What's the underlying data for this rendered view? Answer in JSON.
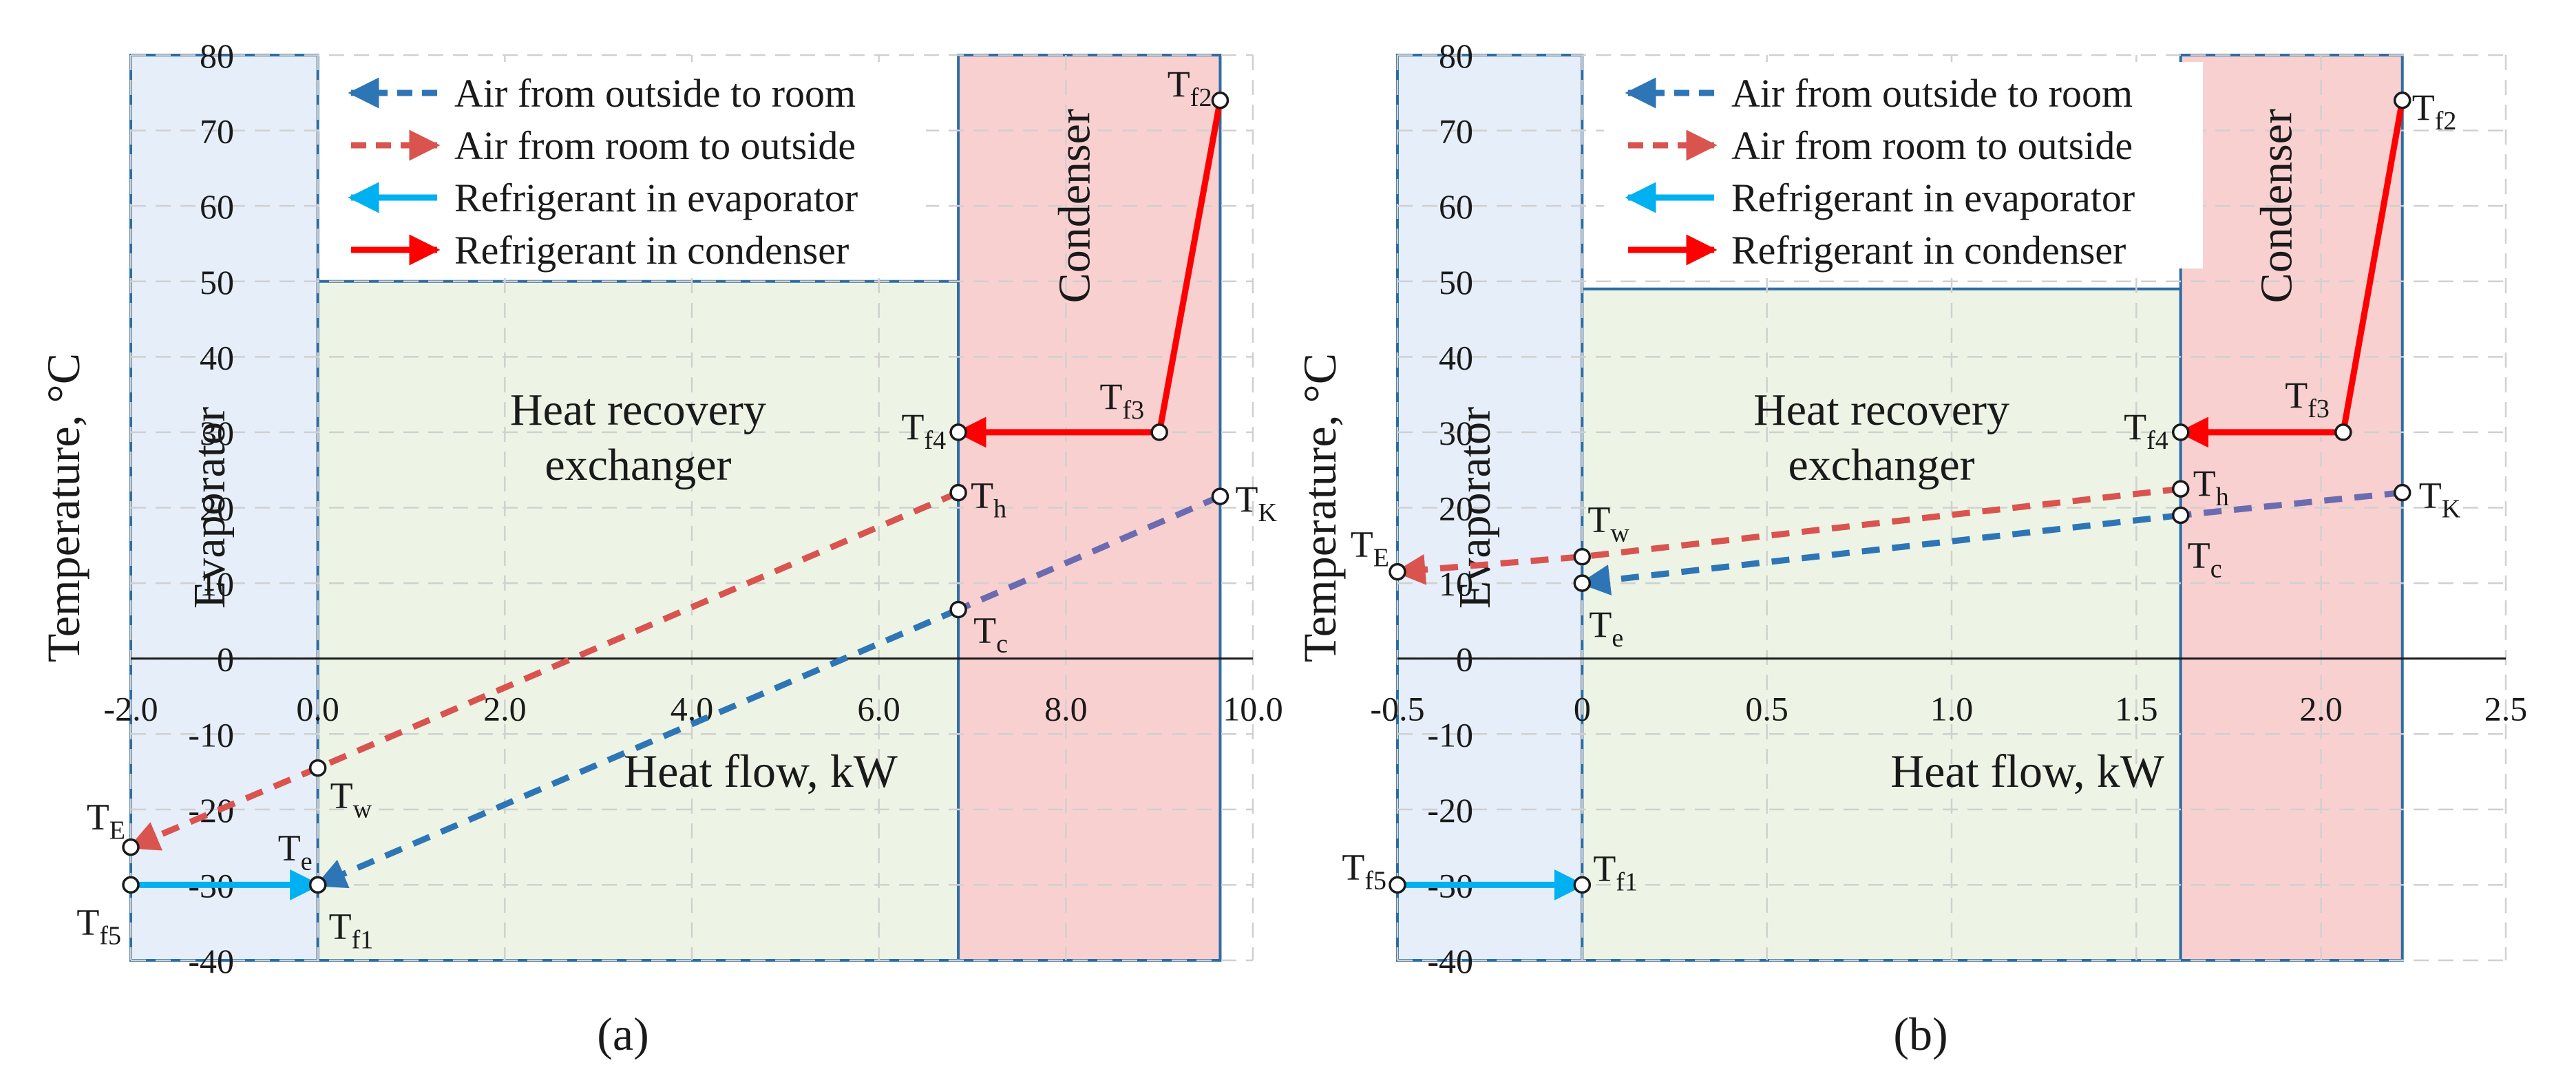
{
  "figure": {
    "panel_labels": [
      "(a)",
      "(b)"
    ]
  },
  "legend": [
    {
      "label": "Air from outside to room",
      "color": "#2e75b6",
      "style": "dashed"
    },
    {
      "label": "Air from room  to outside",
      "color": "#d9534f",
      "style": "dashed"
    },
    {
      "label": "Refrigerant in evaporator",
      "color": "#00b0f0",
      "style": "solid"
    },
    {
      "label": "Refrigerant in condenser",
      "color": "#ff0000",
      "style": "solid"
    }
  ],
  "colors": {
    "evaporator_fill": "#e6eef9",
    "recovery_fill": "#edf4e6",
    "condenser_fill": "#f9d0d0",
    "zone_border": "#2d6da3",
    "air_out_to_room": "#2e75b6",
    "air_room_to_out": "#d9534f",
    "condenser_segment_air": "#6b6bb0",
    "refrigerant_evaporator": "#00b0f0",
    "refrigerant_condenser": "#ff0000",
    "grid": "#d0d0d0"
  },
  "chart_data": [
    {
      "type": "line",
      "panel": "(a)",
      "xlabel": "Heat flow, kW",
      "ylabel": "Temperature, °C",
      "xlim": [
        -2.0,
        10.0
      ],
      "ylim": [
        -40,
        80
      ],
      "xticks": [
        -2.0,
        0.0,
        2.0,
        4.0,
        6.0,
        8.0,
        10.0
      ],
      "xtick_labels": [
        "-2.0",
        "0.0",
        "2.0",
        "4.0",
        "6.0",
        "8.0",
        "10.0"
      ],
      "yticks": [
        -40,
        -30,
        -20,
        -10,
        0,
        10,
        20,
        30,
        40,
        50,
        60,
        70,
        80
      ],
      "ytick_labels": [
        "-40",
        "-30",
        "-20",
        "-10",
        "0",
        "10",
        "20",
        "30",
        "40",
        "50",
        "60",
        "70",
        "80"
      ],
      "zones": [
        {
          "label": "Evaporator",
          "x": [
            -2.0,
            0.0
          ],
          "y": [
            -40,
            80
          ]
        },
        {
          "label": "Heat recovery\nexchanger",
          "x": [
            0.0,
            6.85
          ],
          "y": [
            -40,
            50
          ]
        },
        {
          "label": "Condenser",
          "x": [
            6.85,
            9.65
          ],
          "y": [
            -40,
            80
          ]
        }
      ],
      "series": [
        {
          "name": "Air from outside to room",
          "points": [
            [
              0.0,
              -30
            ],
            [
              6.85,
              6.5
            ],
            [
              9.65,
              21.5
            ]
          ]
        },
        {
          "name": "Air from room  to outside",
          "points": [
            [
              6.85,
              22
            ],
            [
              0.0,
              -14.5
            ],
            [
              -2.0,
              -25
            ]
          ]
        },
        {
          "name": "Refrigerant in evaporator",
          "points": [
            [
              -2.0,
              -30
            ],
            [
              0.0,
              -30
            ]
          ]
        },
        {
          "name": "Refrigerant in condenser",
          "points": [
            [
              9.65,
              74
            ],
            [
              9.0,
              30
            ],
            [
              6.85,
              30
            ]
          ]
        }
      ],
      "points": [
        {
          "label": "Tf2",
          "x": 9.65,
          "y": 74
        },
        {
          "label": "Tf3",
          "x": 9.0,
          "y": 30
        },
        {
          "label": "Tf4",
          "x": 6.85,
          "y": 30
        },
        {
          "label": "Th",
          "x": 6.85,
          "y": 22
        },
        {
          "label": "TK",
          "x": 9.65,
          "y": 21.5
        },
        {
          "label": "Tc",
          "x": 6.85,
          "y": 6.5
        },
        {
          "label": "Tw",
          "x": 0.0,
          "y": -14.5
        },
        {
          "label": "TE",
          "x": -2.0,
          "y": -25
        },
        {
          "label": "Te",
          "x": 0.0,
          "y": -30
        },
        {
          "label": "Tf1",
          "x": 0.0,
          "y": -30
        },
        {
          "label": "Tf5",
          "x": -2.0,
          "y": -30
        }
      ]
    },
    {
      "type": "line",
      "panel": "(b)",
      "xlabel": "Heat flow, kW",
      "ylabel": "Temperature, °C",
      "xlim": [
        -0.5,
        2.5
      ],
      "ylim": [
        -40,
        80
      ],
      "xticks": [
        -0.5,
        0.0,
        0.5,
        1.0,
        1.5,
        2.0,
        2.5
      ],
      "xtick_labels": [
        "-0.5",
        "0",
        "0.5",
        "1.0",
        "1.5",
        "2.0",
        "2.5"
      ],
      "yticks": [
        -40,
        -30,
        -20,
        -10,
        0,
        10,
        20,
        30,
        40,
        50,
        60,
        70,
        80
      ],
      "ytick_labels": [
        "-40",
        "-30",
        "-20",
        "-10",
        "0",
        "10",
        "20",
        "30",
        "40",
        "50",
        "60",
        "70",
        "80"
      ],
      "zones": [
        {
          "label": "Evaporator",
          "x": [
            -0.5,
            0.0
          ],
          "y": [
            -40,
            80
          ]
        },
        {
          "label": "Heat recovery\nexchanger",
          "x": [
            0.0,
            1.62
          ],
          "y": [
            -40,
            49
          ]
        },
        {
          "label": "Condenser",
          "x": [
            1.62,
            2.22
          ],
          "y": [
            -40,
            80
          ]
        }
      ],
      "series": [
        {
          "name": "Air from outside to room",
          "points": [
            [
              0.0,
              10
            ],
            [
              1.62,
              19
            ],
            [
              2.22,
              22
            ]
          ]
        },
        {
          "name": "Air from room  to outside",
          "points": [
            [
              1.62,
              22.5
            ],
            [
              0.0,
              13.5
            ],
            [
              -0.5,
              11.5
            ]
          ]
        },
        {
          "name": "Refrigerant in evaporator",
          "points": [
            [
              -0.5,
              -30
            ],
            [
              0.0,
              -30
            ]
          ]
        },
        {
          "name": "Refrigerant in condenser",
          "points": [
            [
              2.22,
              74
            ],
            [
              2.06,
              30
            ],
            [
              1.62,
              30
            ]
          ]
        }
      ],
      "points": [
        {
          "label": "Tf2",
          "x": 2.22,
          "y": 74
        },
        {
          "label": "Tf3",
          "x": 2.06,
          "y": 30
        },
        {
          "label": "Tf4",
          "x": 1.62,
          "y": 30
        },
        {
          "label": "Th",
          "x": 1.62,
          "y": 22.5
        },
        {
          "label": "TK",
          "x": 2.22,
          "y": 22
        },
        {
          "label": "Tc",
          "x": 1.62,
          "y": 19
        },
        {
          "label": "Tw",
          "x": 0.0,
          "y": 13.5
        },
        {
          "label": "TE",
          "x": -0.5,
          "y": 11.5
        },
        {
          "label": "Te",
          "x": 0.0,
          "y": 10
        },
        {
          "label": "Tf1",
          "x": 0.0,
          "y": -30
        },
        {
          "label": "Tf5",
          "x": -0.5,
          "y": -30
        }
      ]
    }
  ]
}
